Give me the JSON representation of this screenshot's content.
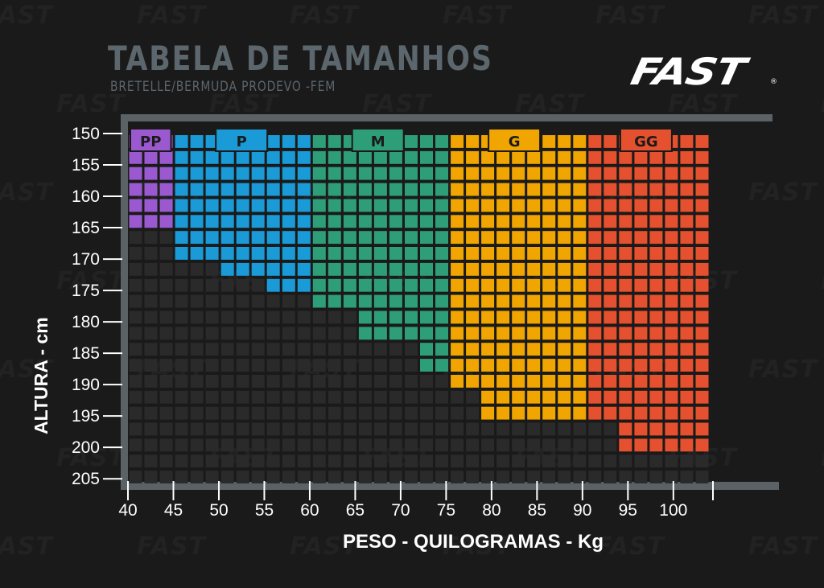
{
  "header": {
    "title": "TABELA DE TAMANHOS",
    "subtitle": "BRETELLE/BERMUDA PRODEVO -FEM",
    "logo_text": "FAST",
    "logo_reg": "®"
  },
  "watermark_text": "FAST",
  "colors": {
    "background": "#1a1a1a",
    "frame": "#5a6266",
    "empty_cell": "#2a2a2a",
    "PP": "#9b59d0",
    "P": "#1a9bd7",
    "M": "#2e9e78",
    "G": "#f0a500",
    "GG": "#e5502e"
  },
  "chart_data": {
    "type": "heatmap",
    "title": "TABELA DE TAMANHOS",
    "subtitle": "BRETELLE/BERMUDA PRODEVO -FEM",
    "xlabel": "PESO - QUILOGRAMAS - Kg",
    "ylabel": "ALTURA  - cm",
    "x_ticks": [
      "40",
      "45",
      "50",
      "55",
      "60",
      "65",
      "70",
      "75",
      "80",
      "85",
      "90",
      "95",
      "100"
    ],
    "y_ticks": [
      "150",
      "155",
      "160",
      "165",
      "170",
      "175",
      "180",
      "185",
      "190",
      "195",
      "200",
      "205"
    ],
    "xlim": [
      40,
      104
    ],
    "ylim": [
      150,
      206
    ],
    "cell_step_kg": 1.67,
    "cell_step_cm": 2.5,
    "legend": [
      {
        "size": "PP",
        "color": "#9b59d0",
        "weight_range": [
          40,
          44
        ]
      },
      {
        "size": "P",
        "color": "#1a9bd7",
        "weight_range": [
          45,
          59
        ]
      },
      {
        "size": "M",
        "color": "#2e9e78",
        "weight_range": [
          60,
          74
        ]
      },
      {
        "size": "G",
        "color": "#f0a500",
        "weight_range": [
          75,
          89
        ]
      },
      {
        "size": "GG",
        "color": "#e5502e",
        "weight_range": [
          90,
          103
        ]
      }
    ],
    "regions": [
      {
        "size": "PP",
        "weight": [
          40,
          44
        ],
        "height": [
          150,
          165
        ]
      },
      {
        "size": "P",
        "weight": [
          45,
          49
        ],
        "height": [
          150,
          170
        ]
      },
      {
        "size": "P",
        "weight": [
          50,
          54
        ],
        "height": [
          150,
          172.5
        ]
      },
      {
        "size": "P",
        "weight": [
          55,
          59
        ],
        "height": [
          150,
          175
        ]
      },
      {
        "size": "M",
        "weight": [
          60,
          64
        ],
        "height": [
          150,
          177.5
        ]
      },
      {
        "size": "M",
        "weight": [
          65,
          70
        ],
        "height": [
          150,
          182.5
        ]
      },
      {
        "size": "M",
        "weight": [
          71,
          74
        ],
        "height": [
          150,
          187.5
        ]
      },
      {
        "size": "G",
        "weight": [
          75,
          77
        ],
        "height": [
          150,
          190
        ]
      },
      {
        "size": "G",
        "weight": [
          78,
          89
        ],
        "height": [
          150,
          195
        ]
      },
      {
        "size": "GG",
        "weight": [
          90,
          92
        ],
        "height": [
          150,
          195
        ]
      },
      {
        "size": "GG",
        "weight": [
          93,
          103
        ],
        "height": [
          150,
          200
        ]
      }
    ]
  }
}
